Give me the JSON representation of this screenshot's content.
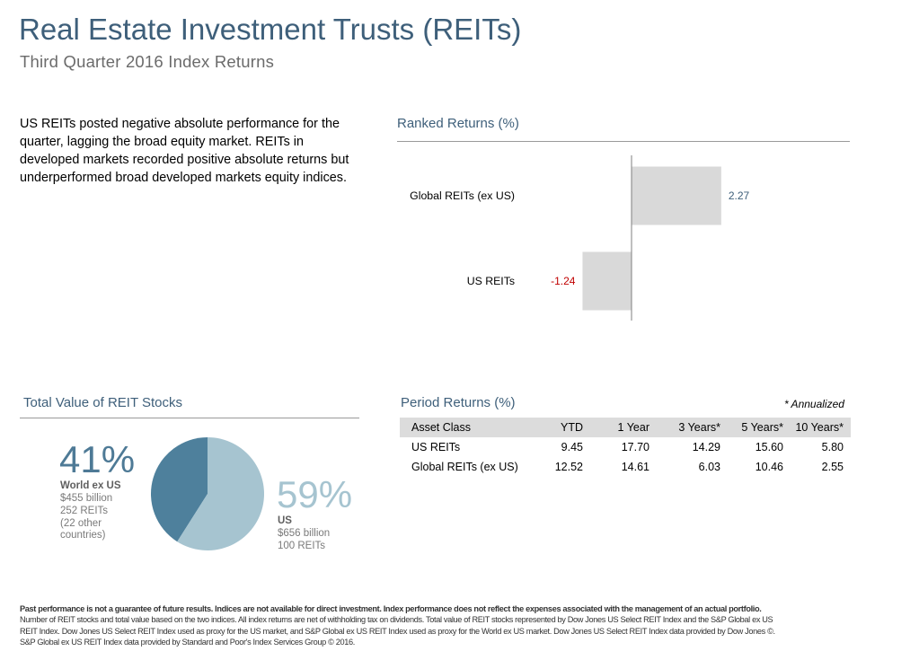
{
  "header": {
    "title": "Real Estate Investment Trusts (REITs)",
    "subtitle": "Third Quarter 2016 Index Returns"
  },
  "intro_text": "US REITs posted negative absolute performance for the quarter, lagging the broad equity market. REITs in developed markets recorded positive absolute returns but underperformed broad developed markets equity indices.",
  "ranked": {
    "heading": "Ranked Returns (%)"
  },
  "total_value": {
    "heading": "Total Value of REIT Stocks",
    "world": {
      "pct": "41%",
      "label": "World ex US",
      "value": "$455 billion",
      "count": "252 REITs",
      "note_line1": "(22 other",
      "note_line2": "countries)"
    },
    "us": {
      "pct": "59%",
      "label": "US",
      "value": "$656 billion",
      "count": "100 REITs"
    }
  },
  "period": {
    "heading": "Period Returns (%)",
    "annotation": "* Annualized",
    "columns": [
      "Asset Class",
      "YTD",
      "1 Year",
      "3 Years*",
      "5 Years*",
      "10 Years*"
    ],
    "rows": [
      [
        "US REITs",
        "9.45",
        "17.70",
        "14.29",
        "15.60",
        "5.80"
      ],
      [
        "Global REITs (ex US)",
        "12.52",
        "14.61",
        "6.03",
        "10.46",
        "2.55"
      ]
    ]
  },
  "footnote": {
    "bold": "Past performance is not a guarantee of future results. Indices are not available for direct investment. Index performance does not reflect the expenses associated with the management of an actual portfolio.",
    "line1": "Number of REIT stocks and total value based on the two indices. All index returns are net of withholding tax on dividends. Total value of REIT stocks represented by Dow Jones US Select REIT Index and the S&P Global ex US",
    "line2": "REIT Index. Dow Jones US Select REIT Index used as proxy for the US market, and S&P Global ex US REIT Index used as proxy for the World ex US market. Dow Jones US Select REIT Index data provided by Dow Jones ©.",
    "line3": "S&P Global ex US REIT Index data provided by Standard and Poor's Index Services Group © 2016."
  },
  "colors": {
    "title": "#3e5f7a",
    "bar": "#d9d9d9",
    "positive_label": "#3e5f7a",
    "negative_label": "#c00000",
    "pie_world": "#4e809c",
    "pie_us": "#a6c4d0",
    "pct_world": "#4e7a96",
    "pct_us": "#a6c4d0"
  },
  "chart_data": [
    {
      "type": "bar",
      "orientation": "horizontal",
      "title": "Ranked Returns (%)",
      "categories": [
        "Global REITs (ex US)",
        "US REITs"
      ],
      "values": [
        2.27,
        -1.24
      ],
      "value_labels": [
        "2.27",
        "-1.24"
      ],
      "xlim": [
        -2.0,
        5.5
      ],
      "grid": false
    },
    {
      "type": "pie",
      "title": "Total Value of REIT Stocks",
      "labels": [
        "World ex US",
        "US"
      ],
      "values": [
        41,
        59
      ]
    }
  ]
}
